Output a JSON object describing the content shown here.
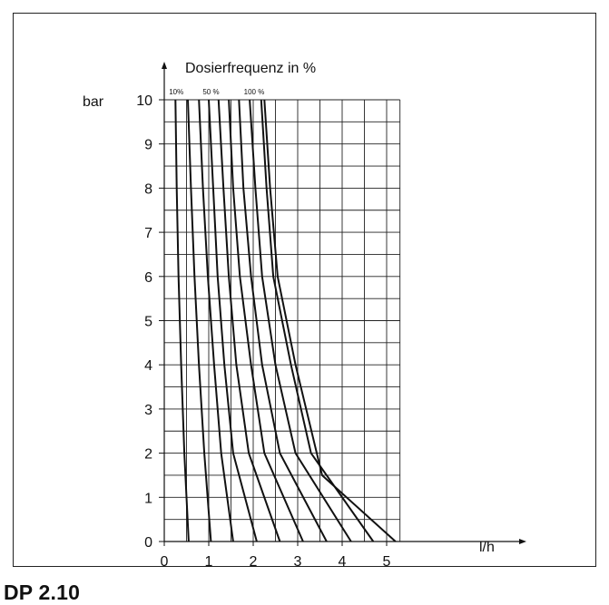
{
  "caption": "DP 2.10",
  "chart_data": {
    "type": "line",
    "title": "Dosierfrequenz in %",
    "xlabel": "l/h",
    "ylabel": "bar",
    "xlim": [
      0,
      5.3
    ],
    "ylim": [
      0,
      10
    ],
    "x_ticks": [
      "0",
      "1",
      "2",
      "3",
      "4",
      "5"
    ],
    "y_ticks": [
      "0",
      "1",
      "2",
      "3",
      "4",
      "5",
      "6",
      "7",
      "8",
      "9",
      "10"
    ],
    "grid": true,
    "series_annotations": [
      {
        "text": "10%",
        "x": 0.27
      },
      {
        "text": "50 %",
        "x": 1.05
      },
      {
        "text": "100 %",
        "x": 2.02
      }
    ],
    "series": [
      {
        "x": [
          0.55,
          0.45,
          0.38,
          0.32,
          0.28,
          0.25
        ],
        "y": [
          0,
          2,
          4,
          6,
          8,
          10
        ]
      },
      {
        "x": [
          1.05,
          0.9,
          0.78,
          0.68,
          0.6,
          0.53
        ],
        "y": [
          0,
          2,
          4,
          6,
          8,
          10
        ]
      },
      {
        "x": [
          1.55,
          1.28,
          1.12,
          0.98,
          0.87,
          0.78
        ],
        "y": [
          0,
          2,
          4,
          6,
          8,
          10
        ]
      },
      {
        "x": [
          2.08,
          1.55,
          1.35,
          1.2,
          1.1,
          1.0
        ],
        "y": [
          0,
          2,
          4,
          6,
          8,
          10
        ]
      },
      {
        "x": [
          2.6,
          1.9,
          1.62,
          1.45,
          1.33,
          1.22
        ],
        "y": [
          0,
          2,
          4,
          6,
          8,
          10
        ]
      },
      {
        "x": [
          3.12,
          2.25,
          1.95,
          1.7,
          1.55,
          1.45
        ],
        "y": [
          0,
          2,
          4,
          6,
          8,
          10
        ]
      },
      {
        "x": [
          3.65,
          2.6,
          2.2,
          1.95,
          1.78,
          1.68
        ],
        "y": [
          0,
          2,
          4,
          6,
          8,
          10
        ]
      },
      {
        "x": [
          4.2,
          2.95,
          2.5,
          2.2,
          2.05,
          1.92
        ],
        "y": [
          0,
          2,
          4,
          6,
          8,
          10
        ]
      },
      {
        "x": [
          4.7,
          3.3,
          2.85,
          2.45,
          2.3,
          2.18
        ],
        "y": [
          0,
          2,
          4,
          6,
          8,
          10
        ]
      },
      {
        "x": [
          5.2,
          3.55,
          2.95,
          2.55,
          2.38,
          2.25
        ],
        "y": [
          0,
          1.5,
          4,
          6,
          8,
          10
        ]
      }
    ]
  }
}
